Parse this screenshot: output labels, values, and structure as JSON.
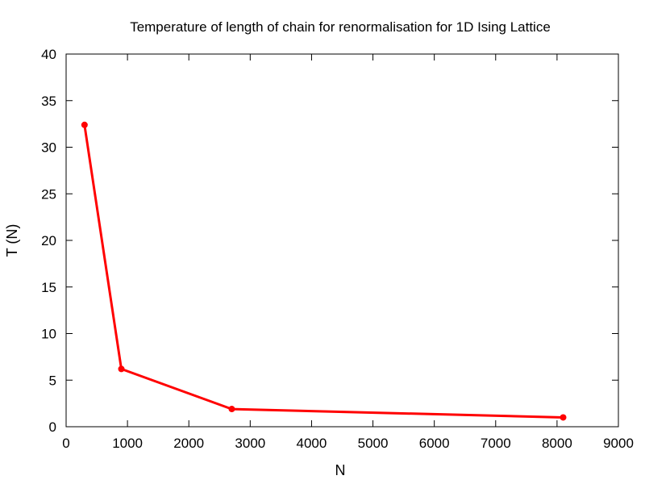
{
  "chart_data": {
    "type": "line",
    "title": "Temperature of length of chain for renormalisation for 1D Ising Lattice",
    "xlabel": "N",
    "ylabel": "T (N)",
    "xlim": [
      0,
      9000
    ],
    "ylim": [
      0,
      40
    ],
    "xticks": [
      0,
      1000,
      2000,
      3000,
      4000,
      5000,
      6000,
      7000,
      8000,
      9000
    ],
    "yticks": [
      0,
      5,
      10,
      15,
      20,
      25,
      30,
      35,
      40
    ],
    "grid": false,
    "legend": "none",
    "series": [
      {
        "color": "#ff0000",
        "points": [
          {
            "x": 300,
            "y": 32.4
          },
          {
            "x": 900,
            "y": 6.2
          },
          {
            "x": 2700,
            "y": 1.9
          },
          {
            "x": 8100,
            "y": 1.0
          }
        ]
      }
    ]
  }
}
